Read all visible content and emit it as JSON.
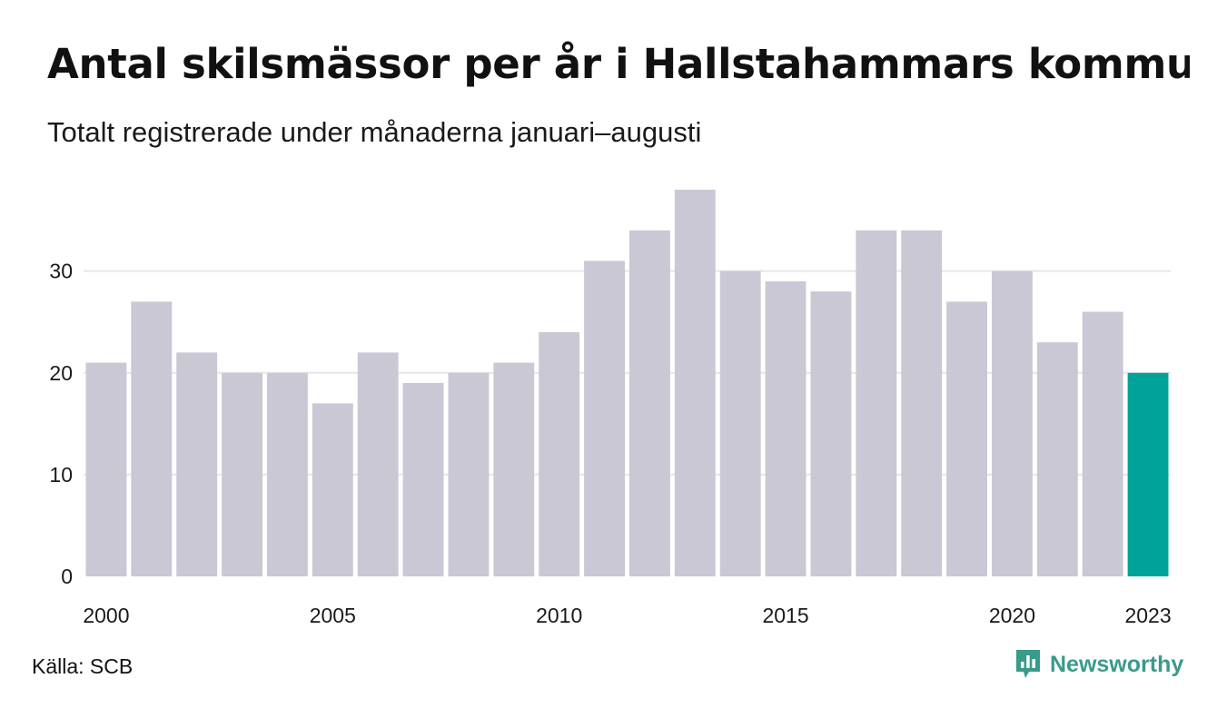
{
  "title": "Antal skilsmässor per år i Hallstahammars kommun",
  "subtitle": "Totalt registrerade under månaderna januari–augusti",
  "source": "Källa: SCB",
  "brand": {
    "name": "Newsworthy",
    "icon": "newsworthy-logo-icon",
    "color": "#3a9a8c"
  },
  "chart_data": {
    "type": "bar",
    "categories": [
      "2000",
      "2001",
      "2002",
      "2003",
      "2004",
      "2005",
      "2006",
      "2007",
      "2008",
      "2009",
      "2010",
      "2011",
      "2012",
      "2013",
      "2014",
      "2015",
      "2016",
      "2017",
      "2018",
      "2019",
      "2020",
      "2021",
      "2022",
      "2023"
    ],
    "values": [
      21,
      27,
      22,
      20,
      20,
      17,
      22,
      19,
      20,
      21,
      24,
      31,
      34,
      38,
      30,
      29,
      28,
      34,
      34,
      27,
      30,
      23,
      26,
      20
    ],
    "x_tick_labels": [
      "2000",
      "2005",
      "2010",
      "2015",
      "2020",
      "2023"
    ],
    "y_ticks": [
      0,
      10,
      20,
      30
    ],
    "ylim": [
      0,
      38
    ],
    "grid": true,
    "colors": {
      "default": "#c9c8d4",
      "highlight": "#00a39a",
      "grid": "#e6e6e6"
    },
    "highlight_category": "2023"
  }
}
